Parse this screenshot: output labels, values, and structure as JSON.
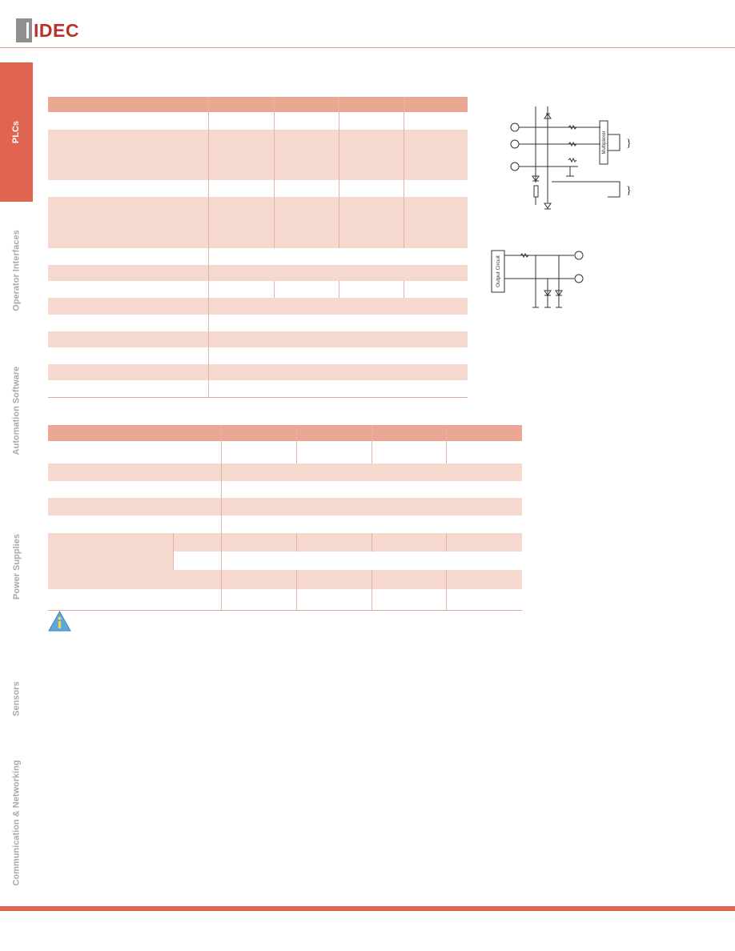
{
  "header": {
    "logo_text": "IDEC"
  },
  "sidebar": {
    "items": [
      {
        "label": "PLCs",
        "active": true
      },
      {
        "label": "Operator Interfaces",
        "active": false
      },
      {
        "label": "Automation Software",
        "active": false
      },
      {
        "label": "Power Supplies",
        "active": false
      },
      {
        "label": "Sensors",
        "active": false
      },
      {
        "label": "Communication & Networking",
        "active": false
      }
    ]
  },
  "colors": {
    "accent": "#e0644f",
    "table_header": "#eaa793",
    "table_shade": "#f5d9cf",
    "logo_red": "#b8332a",
    "logo_gray": "#8f8f8f"
  },
  "diagrams": {
    "input_circuit": {
      "block_label": "Multiplexer"
    },
    "output_circuit": {
      "block_label": "Output Circuit"
    }
  },
  "icons": {
    "info": "info-triangle-icon"
  }
}
